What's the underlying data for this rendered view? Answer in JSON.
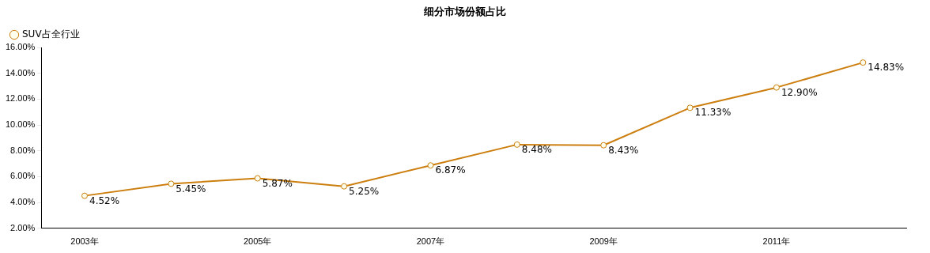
{
  "chart_data": {
    "type": "line",
    "title": "细分市场份额占比",
    "categories": [
      "2003年",
      null,
      "2005年",
      null,
      "2007年",
      null,
      "2009年",
      null,
      "2011年",
      null
    ],
    "series": [
      {
        "name": "SUV占全行业",
        "color": "#cc7f0f",
        "values": [
          4.52,
          5.45,
          5.87,
          5.25,
          6.87,
          8.48,
          8.43,
          11.33,
          12.9,
          14.83
        ],
        "value_labels": [
          "4.52%",
          "5.45%",
          "5.87%",
          "5.25%",
          "6.87%",
          "8.48%",
          "8.43%",
          "11.33%",
          "12.90%",
          "14.83%"
        ]
      }
    ],
    "ylim": [
      2,
      16
    ],
    "yticks": [
      {
        "value": 2,
        "label": "2.00%"
      },
      {
        "value": 4,
        "label": "4.00%"
      },
      {
        "value": 6,
        "label": "6.00%"
      },
      {
        "value": 8,
        "label": "8.00%"
      },
      {
        "value": 10,
        "label": "10.00%"
      },
      {
        "value": 12,
        "label": "12.00%"
      },
      {
        "value": 14,
        "label": "14.00%"
      },
      {
        "value": 16,
        "label": "16.00%"
      }
    ],
    "grid": false,
    "legend": "top left",
    "marker": "circle",
    "line_style": "solid"
  }
}
